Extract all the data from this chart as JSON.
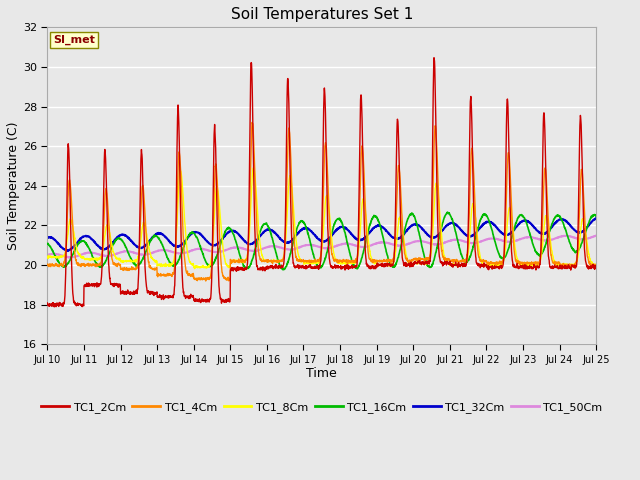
{
  "title": "Soil Temperatures Set 1",
  "xlabel": "Time",
  "ylabel": "Soil Temperature (C)",
  "ylim": [
    16,
    32
  ],
  "yticks": [
    16,
    18,
    20,
    22,
    24,
    26,
    28,
    30,
    32
  ],
  "n_days": 15,
  "xtick_labels": [
    "Jul 10",
    "Jul 11",
    "Jul 12",
    "Jul 13",
    "Jul 14",
    "Jul 15",
    "Jul 16",
    "Jul 17",
    "Jul 18",
    "Jul 19",
    "Jul 20",
    "Jul 21",
    "Jul 22",
    "Jul 23",
    "Jul 24",
    "Jul 25"
  ],
  "background_color": "#e8e8e8",
  "fig_facecolor": "#e8e8e8",
  "grid_color": "#ffffff",
  "legend_label": "SI_met",
  "series": {
    "TC1_2Cm": {
      "color": "#cc0000",
      "lw": 1.0
    },
    "TC1_4Cm": {
      "color": "#ff8800",
      "lw": 1.0
    },
    "TC1_8Cm": {
      "color": "#ffff00",
      "lw": 1.0
    },
    "TC1_16Cm": {
      "color": "#00bb00",
      "lw": 1.2
    },
    "TC1_32Cm": {
      "color": "#0000cc",
      "lw": 1.5
    },
    "TC1_50Cm": {
      "color": "#dd88dd",
      "lw": 1.5
    }
  },
  "day_peaks_2cm": [
    26.1,
    25.8,
    25.8,
    28.0,
    27.0,
    30.3,
    29.4,
    28.9,
    28.6,
    27.4,
    30.5,
    28.5,
    28.4,
    27.7,
    27.5
  ],
  "day_peaks_4cm": [
    24.3,
    23.8,
    24.0,
    25.7,
    25.1,
    27.2,
    26.9,
    26.2,
    26.0,
    25.0,
    27.0,
    25.9,
    25.7,
    24.9,
    24.8
  ],
  "day_peaks_8cm": [
    22.3,
    22.0,
    22.1,
    24.8,
    23.9,
    24.9,
    24.5,
    23.5,
    23.3,
    22.4,
    24.1,
    23.1,
    22.9,
    22.5,
    22.3
  ],
  "night_base_2cm": [
    18.0,
    19.0,
    18.6,
    18.4,
    18.2,
    19.8,
    19.9,
    19.9,
    19.9,
    20.0,
    20.1,
    20.0,
    19.9,
    19.9,
    19.9
  ],
  "night_base_4cm": [
    20.0,
    20.0,
    19.8,
    19.5,
    19.3,
    20.2,
    20.2,
    20.2,
    20.2,
    20.2,
    20.3,
    20.2,
    20.1,
    20.1,
    20.0
  ],
  "night_base_8cm": [
    20.4,
    20.3,
    20.2,
    20.0,
    19.9,
    20.2,
    20.2,
    20.1,
    20.1,
    20.0,
    20.1,
    20.0,
    20.0,
    20.0,
    20.0
  ]
}
